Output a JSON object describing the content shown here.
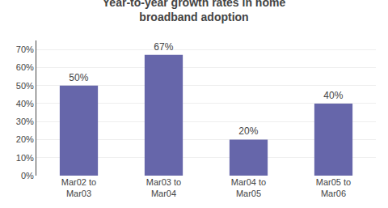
{
  "chart_data": {
    "type": "bar",
    "title": "Year-to-year growth rates in home\nbroadband adoption",
    "categories": [
      "Mar02 to\nMar03",
      "Mar03 to\nMar04",
      "Mar04 to\nMar05",
      "Mar05 to\nMar06"
    ],
    "values": [
      50,
      67,
      20,
      40
    ],
    "value_labels": [
      "50%",
      "67%",
      "20%",
      "40%"
    ],
    "data_labels": true,
    "color": "#6666aa",
    "ylim": [
      0,
      75
    ],
    "yticks": [
      {
        "value": 0,
        "label": "0%"
      },
      {
        "value": 10,
        "label": "10%"
      },
      {
        "value": 20,
        "label": "20%"
      },
      {
        "value": 30,
        "label": "30%"
      },
      {
        "value": 40,
        "label": "40%"
      },
      {
        "value": 50,
        "label": "50%"
      },
      {
        "value": 60,
        "label": "60%"
      },
      {
        "value": 70,
        "label": "70%"
      }
    ],
    "grid": true
  }
}
